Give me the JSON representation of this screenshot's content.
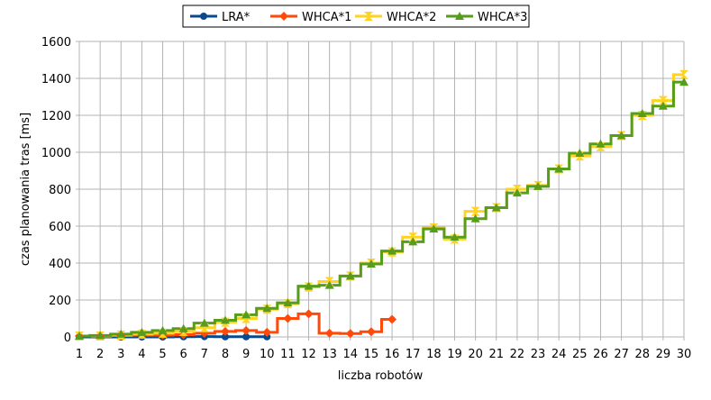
{
  "chart_data": {
    "type": "line",
    "step": true,
    "title": "",
    "xlabel": "liczba robotów",
    "ylabel": "czas planowania tras [ms]",
    "xlim": [
      1,
      30
    ],
    "ylim": [
      0,
      1600
    ],
    "x_ticks": [
      1,
      2,
      3,
      4,
      5,
      6,
      7,
      8,
      9,
      10,
      11,
      12,
      13,
      14,
      15,
      16,
      17,
      18,
      19,
      20,
      21,
      22,
      23,
      24,
      25,
      26,
      27,
      28,
      29,
      30
    ],
    "y_ticks": [
      0,
      200,
      400,
      600,
      800,
      1000,
      1200,
      1400,
      1600
    ],
    "grid": true,
    "legend_position": "top-center",
    "series": [
      {
        "name": "LRA*",
        "color": "#0a4a8c",
        "marker": "circle",
        "x": [
          1,
          2,
          3,
          4,
          5,
          6,
          7,
          8,
          9,
          10
        ],
        "values": [
          0,
          0,
          0,
          0,
          0,
          1,
          2,
          1,
          1,
          1
        ]
      },
      {
        "name": "WHCA*1",
        "color": "#ff4a0a",
        "marker": "diamond",
        "x": [
          1,
          2,
          3,
          4,
          5,
          6,
          7,
          8,
          9,
          10,
          11,
          12,
          13,
          14,
          15,
          16
        ],
        "values": [
          5,
          5,
          8,
          10,
          10,
          12,
          20,
          30,
          35,
          25,
          100,
          125,
          20,
          18,
          28,
          95
        ]
      },
      {
        "name": "WHCA*2",
        "color": "#ffd320",
        "marker": "bowtie",
        "x": [
          1,
          2,
          3,
          4,
          5,
          6,
          7,
          8,
          9,
          10,
          11,
          12,
          13,
          14,
          15,
          16,
          17,
          18,
          19,
          20,
          21,
          22,
          23,
          24,
          25,
          26,
          27,
          28,
          29,
          30
        ],
        "values": [
          5,
          5,
          10,
          15,
          20,
          30,
          50,
          80,
          100,
          150,
          180,
          270,
          300,
          330,
          400,
          460,
          540,
          590,
          530,
          680,
          700,
          800,
          820,
          910,
          980,
          1030,
          1090,
          1200,
          1280,
          1420
        ]
      },
      {
        "name": "WHCA*3",
        "color": "#579d1c",
        "marker": "triangle",
        "x": [
          1,
          2,
          3,
          4,
          5,
          6,
          7,
          8,
          9,
          10,
          11,
          12,
          13,
          14,
          15,
          16,
          17,
          18,
          19,
          20,
          21,
          22,
          23,
          24,
          25,
          26,
          27,
          28,
          29,
          30
        ],
        "values": [
          5,
          8,
          15,
          25,
          35,
          45,
          75,
          90,
          120,
          155,
          185,
          275,
          280,
          330,
          395,
          465,
          515,
          585,
          540,
          640,
          700,
          780,
          815,
          910,
          995,
          1045,
          1090,
          1210,
          1250,
          1380
        ]
      }
    ]
  }
}
